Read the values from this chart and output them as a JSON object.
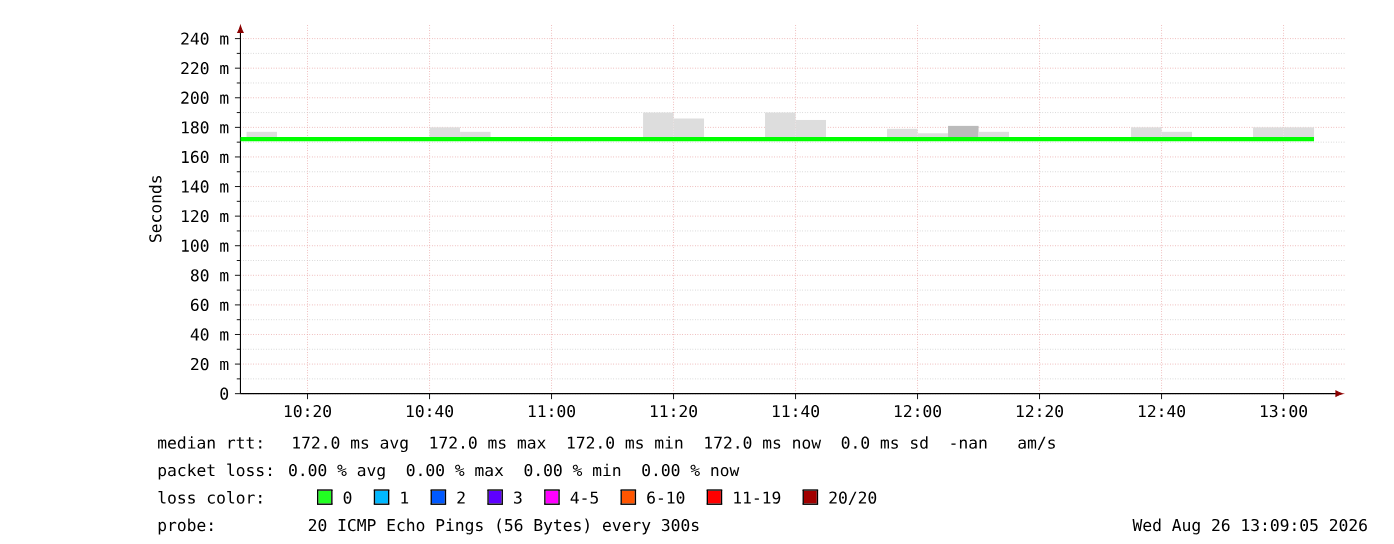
{
  "chart_data": {
    "type": "bar",
    "ylabel": "Seconds",
    "series": [
      {
        "x": [
          10.2083,
          10.7083,
          10.7917,
          11.2917,
          11.375,
          11.625,
          11.7083,
          11.9583,
          12.0417,
          12.125,
          12.2083,
          12.625,
          12.7083,
          12.9583,
          13.0417
        ],
        "base": [
          172,
          172,
          172,
          172,
          172,
          172,
          172,
          172,
          172,
          172,
          172,
          172,
          172,
          172,
          172
        ],
        "values": [
          5,
          8,
          5,
          18,
          14,
          18,
          13,
          7,
          4,
          9,
          5,
          8,
          5,
          8,
          8
        ],
        "colors": [
          "#dddddd",
          "#dddddd",
          "#dddddd",
          "#dddddd",
          "#dddddd",
          "#dddddd",
          "#dddddd",
          "#dddddd",
          "#dddddd",
          "#bbbbbb",
          "#dddddd",
          "#dddddd",
          "#dddddd",
          "#dddddd",
          "#dddddd"
        ]
      },
      {
        "type": "line",
        "x": [
          10.15,
          13.0833
        ],
        "values": [
          172,
          172
        ],
        "color": "#00ff00"
      }
    ],
    "xlim": [
      10.15,
      13.1667
    ],
    "ylim": [
      0,
      250
    ],
    "xticks": [
      {
        "value": 10.3333,
        "label": "10:20"
      },
      {
        "value": 10.6667,
        "label": "10:40"
      },
      {
        "value": 11,
        "label": "11:00"
      },
      {
        "value": 11.3333,
        "label": "11:20"
      },
      {
        "value": 11.6667,
        "label": "11:40"
      },
      {
        "value": 12,
        "label": "12:00"
      },
      {
        "value": 12.3333,
        "label": "12:20"
      },
      {
        "value": 12.6667,
        "label": "12:40"
      },
      {
        "value": 13,
        "label": "13:00"
      }
    ],
    "yticks": [
      0,
      {
        "value": 20,
        "label": "20 m"
      },
      {
        "value": 40,
        "label": "40 m"
      },
      {
        "value": 60,
        "label": "60 m"
      },
      {
        "value": 80,
        "label": "80 m"
      },
      {
        "value": 100,
        "label": "100 m"
      },
      {
        "value": 120,
        "label": "120 m"
      },
      {
        "value": 140,
        "label": "140 m"
      },
      {
        "value": 160,
        "label": "160 m"
      },
      {
        "value": 180,
        "label": "180 m"
      },
      {
        "value": 200,
        "label": "200 m"
      },
      {
        "value": 220,
        "label": "220 m"
      },
      {
        "value": 240,
        "label": "240 m"
      }
    ],
    "grid": true,
    "annotations": [
      "median rtt:  172.0 ms avg  172.0 ms max  172.0 ms min  172.0 ms now  0.0 ms sd  -nan   am/s",
      "packet loss: 0.00 % avg  0.00 % max  0.00 % min  0.00 % now",
      "loss color:",
      "0",
      "1",
      "2",
      "3",
      "4-5",
      "6-10",
      "11-19",
      "20/20",
      "probe:       20 ICMP Echo Pings (56 Bytes) every 300s",
      "Wed Aug 26 13:09:05 2026"
    ]
  }
}
